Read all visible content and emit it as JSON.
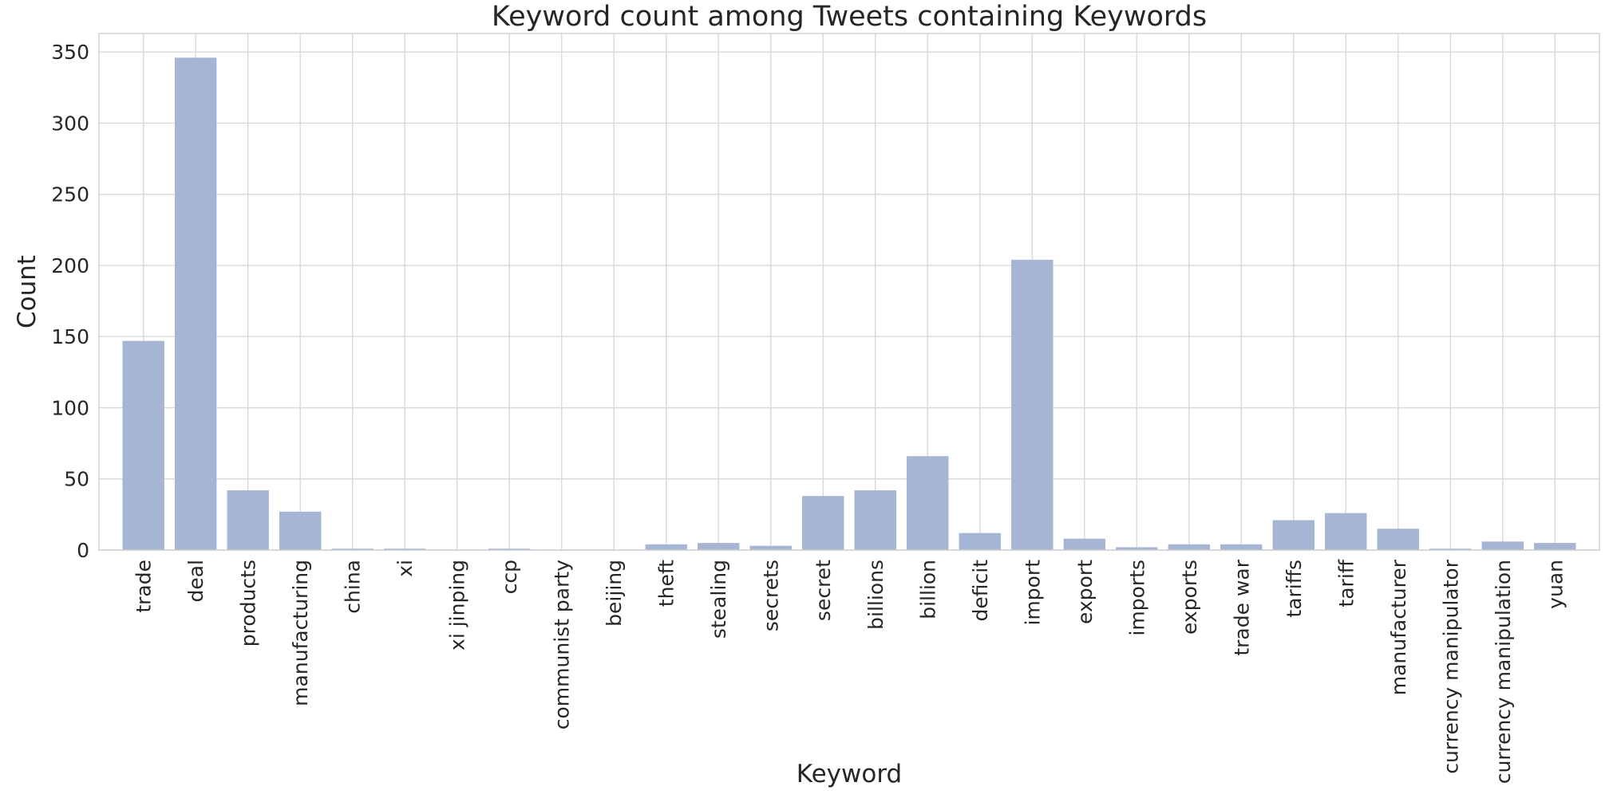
{
  "chart_data": {
    "type": "bar",
    "title": "Keyword count among Tweets containing Keywords",
    "xlabel": "Keyword",
    "ylabel": "Count",
    "ylim": [
      0,
      363
    ],
    "yticks": [
      0,
      50,
      100,
      150,
      200,
      250,
      300,
      350
    ],
    "grid": true,
    "bar_color": "#a7b5d4",
    "categories": [
      "trade",
      "deal",
      "products",
      "manufacturing",
      "china",
      "xi",
      "xi jinping",
      "ccp",
      "communist party",
      "beijing",
      "theft",
      "stealing",
      "secrets",
      "secret",
      "billions",
      "billion",
      "deficit",
      "import",
      "export",
      "imports",
      "exports",
      "trade war",
      "tariffs",
      "tariff",
      "manufacturer",
      "currency manipulator",
      "currency manipulation",
      "yuan"
    ],
    "values": [
      147,
      346,
      42,
      27,
      1,
      1,
      0,
      1,
      0,
      0,
      4,
      5,
      3,
      38,
      42,
      66,
      12,
      204,
      8,
      2,
      4,
      4,
      21,
      26,
      15,
      1,
      6,
      5
    ]
  }
}
